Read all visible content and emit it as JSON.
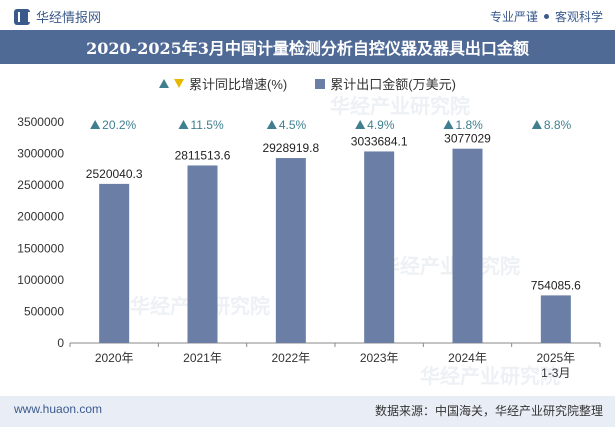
{
  "header": {
    "brand": "华经情报网",
    "top_right_1": "专业严谨",
    "top_right_2": "客观科学",
    "title": "2020-2025年3月中国计量检测分析自控仪器及器具出口金额"
  },
  "legend": {
    "growth": "累计同比增速(%)",
    "amount": "累计出口金额(万美元)"
  },
  "footer": {
    "website": "www.huaon.com",
    "source": "数据来源：中国海关，华经产业研究院整理"
  },
  "watermark": "华经产业研究院",
  "colors": {
    "bar": "#6a7ea6",
    "title_bg": "#506a96",
    "growth_up": "#3f7f8f",
    "growth_down": "#e8b800"
  },
  "chart_data": {
    "type": "bar",
    "title": "2020-2025年3月中国计量检测分析自控仪器及器具出口金额",
    "categories": [
      "2020年",
      "2021年",
      "2022年",
      "2023年",
      "2024年",
      "2025年\n1-3月"
    ],
    "series": [
      {
        "name": "累计出口金额(万美元)",
        "values": [
          2520040.3,
          2811513.6,
          2928919.8,
          3033684.1,
          3077029,
          754085.6
        ]
      },
      {
        "name": "累计同比增速(%)",
        "values": [
          20.2,
          11.5,
          4.5,
          4.9,
          1.8,
          8.8
        ]
      }
    ],
    "value_labels": [
      "2520040.3",
      "2811513.6",
      "2928919.8",
      "3033684.1",
      "3077029",
      "754085.6"
    ],
    "growth_labels": [
      "20.2%",
      "11.5%",
      "4.5%",
      "4.9%",
      "1.8%",
      "8.8%"
    ],
    "yticks": [
      0,
      500000,
      1000000,
      1500000,
      2000000,
      2500000,
      3000000,
      3500000
    ],
    "ylim": [
      0,
      3500000
    ],
    "xlabel": "",
    "ylabel": "",
    "grid": false,
    "legend_position": "top-center"
  }
}
